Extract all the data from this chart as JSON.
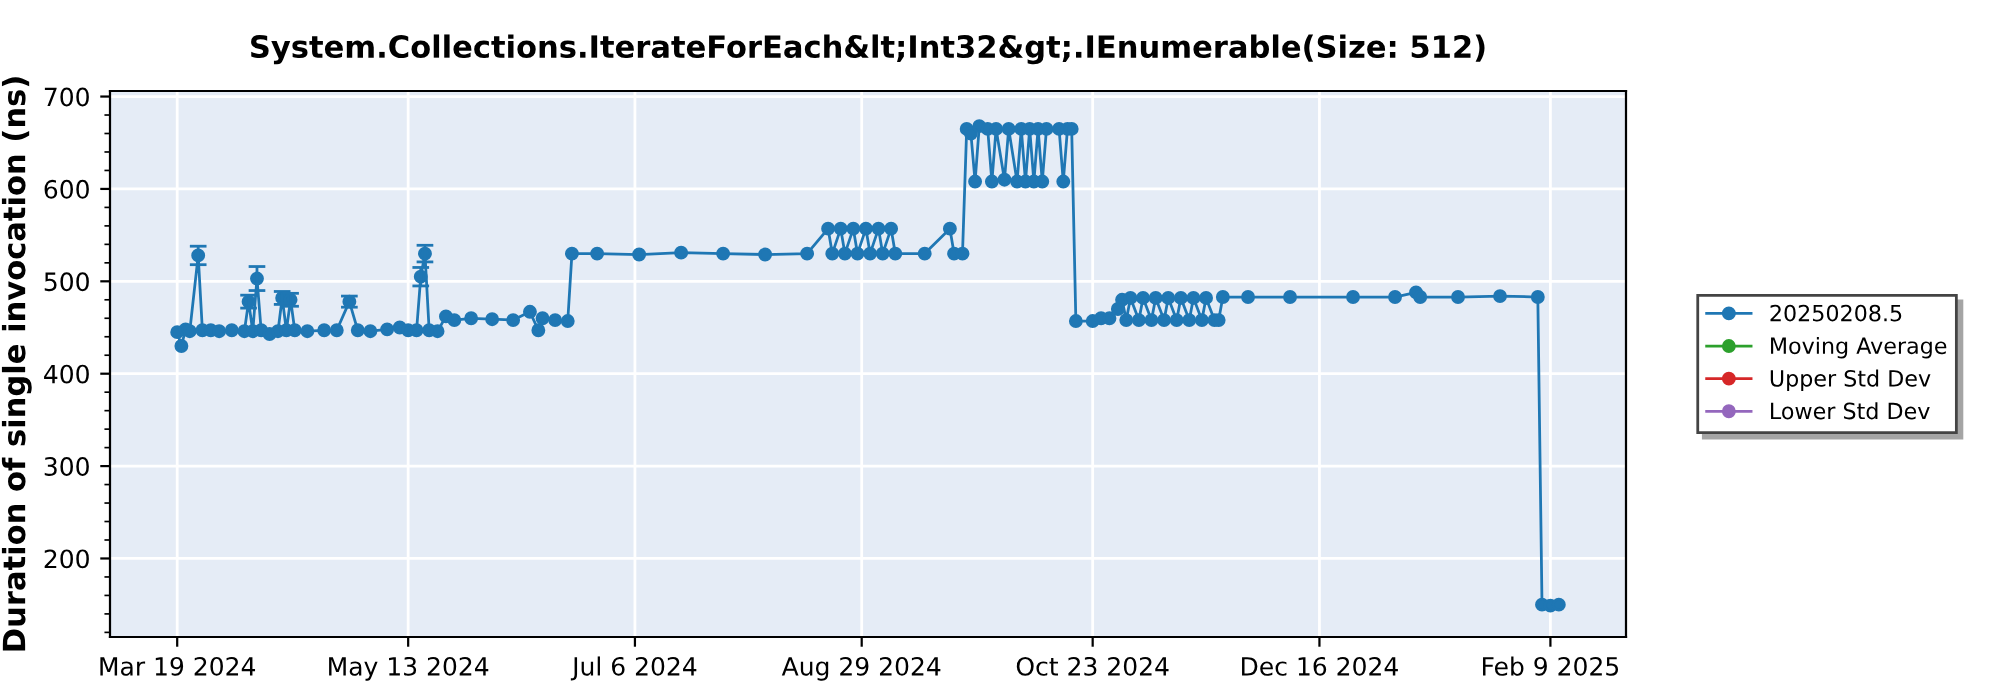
{
  "chart_data": {
    "type": "line",
    "title": "System.Collections.IterateForEach&lt;Int32&gt;.IEnumerable(Size: 512)",
    "ylabel": "Duration of single invocation (ns)",
    "xlim": [
      "2024-03-03",
      "2025-02-27"
    ],
    "ylim": [
      115,
      706
    ],
    "yticks": [
      200,
      300,
      400,
      500,
      600,
      700
    ],
    "xticks": [
      {
        "value": "2024-03-19",
        "label": "Mar 19 2024"
      },
      {
        "value": "2024-05-13",
        "label": "May 13 2024"
      },
      {
        "value": "2024-07-06",
        "label": "Jul 6 2024"
      },
      {
        "value": "2024-08-29",
        "label": "Aug 29 2024"
      },
      {
        "value": "2024-10-23",
        "label": "Oct 23 2024"
      },
      {
        "value": "2024-12-16",
        "label": "Dec 16 2024"
      },
      {
        "value": "2025-02-09",
        "label": "Feb 9 2025"
      }
    ],
    "grid": true,
    "legend": "right",
    "marker": "circle",
    "line_style": "solid",
    "series": [
      {
        "name": "20250208.5",
        "color": "#1f77b4",
        "x": [
          "2024-03-19",
          "2024-03-20",
          "2024-03-21",
          "2024-03-22",
          "2024-03-24",
          "2024-03-25",
          "2024-03-27",
          "2024-03-29",
          "2024-04-01",
          "2024-04-04",
          "2024-04-05",
          "2024-04-06",
          "2024-04-07",
          "2024-04-08",
          "2024-04-10",
          "2024-04-12",
          "2024-04-13",
          "2024-04-14",
          "2024-04-15",
          "2024-04-16",
          "2024-04-19",
          "2024-04-23",
          "2024-04-26",
          "2024-04-29",
          "2024-05-01",
          "2024-05-04",
          "2024-05-08",
          "2024-05-11",
          "2024-05-13",
          "2024-05-15",
          "2024-05-16",
          "2024-05-17",
          "2024-05-18",
          "2024-05-20",
          "2024-05-22",
          "2024-05-24",
          "2024-05-28",
          "2024-06-02",
          "2024-06-07",
          "2024-06-11",
          "2024-06-13",
          "2024-06-14",
          "2024-06-17",
          "2024-06-20",
          "2024-06-21",
          "2024-06-27",
          "2024-07-07",
          "2024-07-17",
          "2024-07-27",
          "2024-08-06",
          "2024-08-16",
          "2024-08-21",
          "2024-08-22",
          "2024-08-24",
          "2024-08-25",
          "2024-08-27",
          "2024-08-28",
          "2024-08-30",
          "2024-08-31",
          "2024-09-02",
          "2024-09-03",
          "2024-09-05",
          "2024-09-06",
          "2024-09-13",
          "2024-09-19",
          "2024-09-20",
          "2024-09-22",
          "2024-09-23",
          "2024-09-24",
          "2024-09-25",
          "2024-09-26",
          "2024-09-28",
          "2024-09-29",
          "2024-09-30",
          "2024-10-02",
          "2024-10-03",
          "2024-10-05",
          "2024-10-06",
          "2024-10-07",
          "2024-10-08",
          "2024-10-09",
          "2024-10-10",
          "2024-10-11",
          "2024-10-12",
          "2024-10-15",
          "2024-10-16",
          "2024-10-17",
          "2024-10-18",
          "2024-10-19",
          "2024-10-23",
          "2024-10-25",
          "2024-10-27",
          "2024-10-29",
          "2024-10-30",
          "2024-10-31",
          "2024-11-01",
          "2024-11-03",
          "2024-11-04",
          "2024-11-06",
          "2024-11-07",
          "2024-11-09",
          "2024-11-10",
          "2024-11-12",
          "2024-11-13",
          "2024-11-15",
          "2024-11-16",
          "2024-11-18",
          "2024-11-19",
          "2024-11-21",
          "2024-11-22",
          "2024-11-23",
          "2024-11-29",
          "2024-12-09",
          "2024-12-24",
          "2025-01-03",
          "2025-01-08",
          "2025-01-09",
          "2025-01-18",
          "2025-01-28",
          "2025-02-06",
          "2025-02-07",
          "2025-02-09",
          "2025-02-11"
        ],
        "values": [
          445,
          430,
          448,
          446,
          528,
          447,
          447,
          446,
          447,
          446,
          478,
          446,
          503,
          447,
          443,
          446,
          482,
          447,
          480,
          447,
          446,
          447,
          447,
          478,
          447,
          446,
          448,
          450,
          447,
          447,
          505,
          530,
          447,
          446,
          462,
          458,
          460,
          459,
          458,
          467,
          447,
          460,
          458,
          457,
          530,
          530,
          529,
          531,
          530,
          529,
          530,
          557,
          530,
          557,
          530,
          557,
          530,
          557,
          530,
          557,
          530,
          557,
          530,
          530,
          557,
          530,
          530,
          665,
          660,
          608,
          668,
          665,
          608,
          665,
          610,
          665,
          608,
          665,
          608,
          665,
          608,
          665,
          608,
          665,
          665,
          608,
          665,
          665,
          457,
          457,
          460,
          460,
          470,
          480,
          458,
          482,
          458,
          482,
          458,
          482,
          458,
          482,
          458,
          482,
          458,
          482,
          458,
          482,
          458,
          458,
          483,
          483,
          483,
          483,
          483,
          488,
          483,
          483,
          484,
          483,
          150,
          149,
          150
        ],
        "errors": [
          null,
          null,
          null,
          null,
          10,
          null,
          null,
          null,
          null,
          null,
          7,
          null,
          13,
          null,
          null,
          null,
          7,
          null,
          7,
          null,
          null,
          null,
          null,
          6,
          null,
          null,
          null,
          null,
          null,
          null,
          10,
          9,
          null,
          null,
          null,
          null,
          null,
          null,
          null,
          null,
          null,
          null,
          null,
          null,
          null,
          null,
          null,
          null,
          null,
          null,
          null,
          null,
          null,
          null,
          null,
          null,
          null,
          null,
          null,
          null,
          null,
          null,
          null,
          null,
          null,
          null,
          null,
          null,
          null,
          null,
          null,
          null,
          null,
          null,
          null,
          null,
          null,
          null,
          null,
          null,
          null,
          null,
          null,
          null,
          null,
          null,
          null,
          null,
          null,
          null,
          null,
          null,
          null,
          null,
          null,
          null,
          null,
          null,
          null,
          null,
          null,
          null,
          null,
          null,
          null,
          null,
          null,
          null,
          null,
          null,
          null,
          null,
          null,
          null,
          null,
          null,
          null,
          null,
          null,
          null,
          null,
          null,
          null
        ]
      },
      {
        "name": "Moving Average",
        "color": "#2ca02c"
      },
      {
        "name": "Upper Std Dev",
        "color": "#d62728"
      },
      {
        "name": "Lower Std Dev",
        "color": "#9467bd"
      }
    ]
  }
}
